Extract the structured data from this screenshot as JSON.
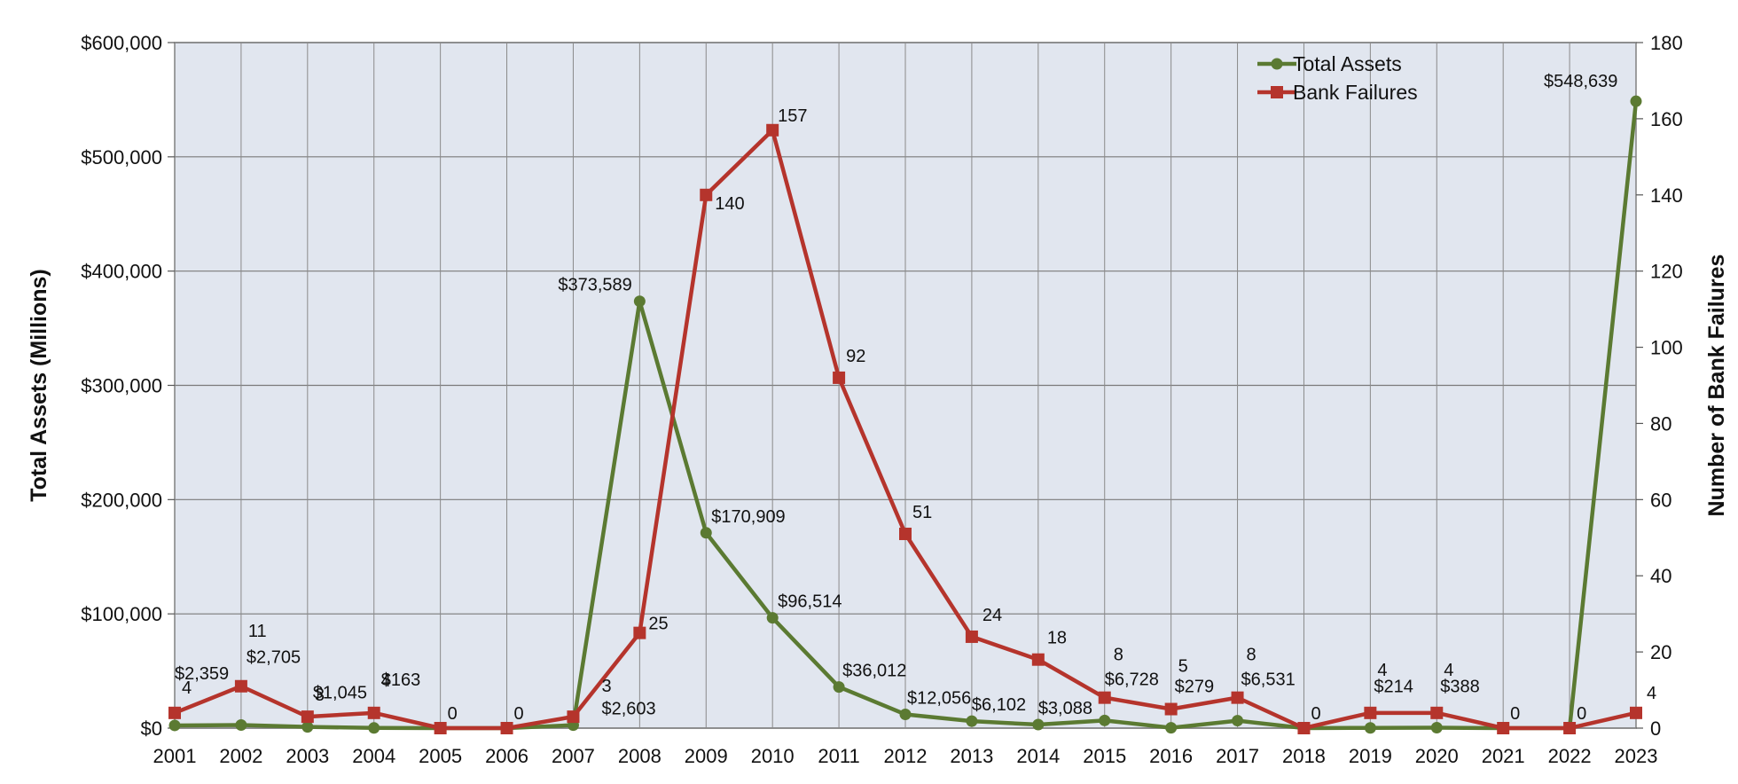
{
  "chart_data": {
    "type": "line",
    "title": "",
    "categories": [
      "2001",
      "2002",
      "2003",
      "2004",
      "2005",
      "2006",
      "2007",
      "2008",
      "2009",
      "2010",
      "2011",
      "2012",
      "2013",
      "2014",
      "2015",
      "2016",
      "2017",
      "2018",
      "2019",
      "2020",
      "2021",
      "2022",
      "2023"
    ],
    "y_left": {
      "label": "Total Assets (Millions)",
      "range": [
        0,
        600000
      ],
      "ticks": [
        "$0",
        "$100,000",
        "$200,000",
        "$300,000",
        "$400,000",
        "$500,000",
        "$600,000"
      ]
    },
    "y_right": {
      "label": "Number of Bank Failures",
      "range": [
        0,
        180
      ],
      "ticks": [
        "0",
        "20",
        "40",
        "60",
        "80",
        "100",
        "120",
        "140",
        "160",
        "180"
      ]
    },
    "grid": true,
    "legend": {
      "position": "top-right",
      "entries": [
        "Total Assets",
        "Bank Failures"
      ]
    },
    "series": [
      {
        "name": "Total Assets",
        "axis": "left",
        "color": "#5b7a32",
        "marker": "circle",
        "values": [
          2359,
          2705,
          1045,
          163,
          0,
          0,
          2603,
          373589,
          170909,
          96514,
          36012,
          12056,
          6102,
          3088,
          6728,
          279,
          6531,
          0,
          214,
          388,
          0,
          0,
          548639
        ],
        "labels": [
          "$2,359",
          "$2,705",
          "$1,045",
          "$163",
          "",
          "",
          "$2,603",
          "$373,589",
          "$170,909",
          "$96,514",
          "$36,012",
          "$12,056",
          "$6,102",
          "$3,088",
          "$6,728",
          "$279",
          "$6,531",
          "",
          "$214",
          "$388",
          "",
          "",
          "$548,639"
        ]
      },
      {
        "name": "Bank Failures",
        "axis": "right",
        "color": "#b5342c",
        "marker": "square",
        "values": [
          4,
          11,
          3,
          4,
          0,
          0,
          3,
          25,
          140,
          157,
          92,
          51,
          24,
          18,
          8,
          5,
          8,
          0,
          4,
          4,
          0,
          0,
          4
        ],
        "labels": [
          "4",
          "11",
          "3",
          "4",
          "0",
          "0",
          "3",
          "25",
          "140",
          "157",
          "92",
          "51",
          "24",
          "18",
          "8",
          "5",
          "8",
          "0",
          "4",
          "4",
          "0",
          "0",
          "4"
        ]
      }
    ]
  }
}
